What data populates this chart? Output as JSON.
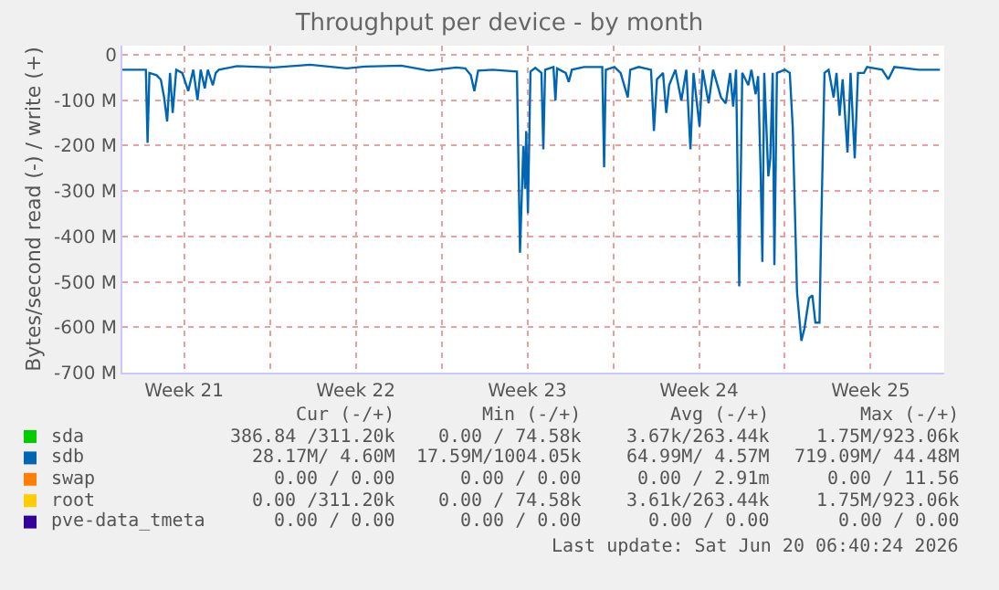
{
  "chart_data": {
    "type": "line",
    "title": "Throughput per device - by month",
    "ylabel": "Bytes/second read (-) / write (+)",
    "xlim": [
      "2026-05-18T23:30",
      "2026-06-21T12:00"
    ],
    "xticks": [
      {
        "value": "2026-05-21T12:00",
        "label": "Week 21"
      },
      {
        "value": "2026-05-25",
        "label": null
      },
      {
        "value": "2026-05-28T12:00",
        "label": "Week 22"
      },
      {
        "value": "2026-06-01",
        "label": null
      },
      {
        "value": "2026-06-04T12:00",
        "label": "Week 23"
      },
      {
        "value": "2026-06-08",
        "label": null
      },
      {
        "value": "2026-06-11T12:00",
        "label": "Week 24"
      },
      {
        "value": "2026-06-15",
        "label": null
      },
      {
        "value": "2026-06-18T12:00",
        "label": "Week 25"
      }
    ],
    "ylim": [
      -700,
      20
    ],
    "yticks": [
      {
        "value": -700,
        "label": "-700 M"
      },
      {
        "value": -600,
        "label": "-600 M"
      },
      {
        "value": -500,
        "label": "-500 M"
      },
      {
        "value": -400,
        "label": "-400 M"
      },
      {
        "value": -300,
        "label": "-300 M"
      },
      {
        "value": -200,
        "label": "-200 M"
      },
      {
        "value": -100,
        "label": "-100 M"
      },
      0
    ],
    "grid": true,
    "legend": "bottom",
    "marker": "none",
    "line_style": "solid",
    "series": [
      {
        "name": "sda",
        "color": "#00cc00"
      },
      {
        "name": "sdb",
        "color": "#0066b3",
        "x": [
          "2026-05-18T23:30",
          "2026-05-19T22:30",
          "2026-05-20T00:10",
          "2026-05-20T02:00",
          "2026-05-20T09:00",
          "2026-05-20T13:10",
          "2026-05-20T16:20",
          "2026-05-20T19:20",
          "2026-05-20T22:10",
          "2026-05-21T00:45",
          "2026-05-21T04:15",
          "2026-05-21T10:10",
          "2026-05-21T16:00",
          "2026-05-21T20:55",
          "2026-05-22T01:05",
          "2026-05-22T04:10",
          "2026-05-22T08:10",
          "2026-05-22T11:10",
          "2026-05-22T16:05",
          "2026-05-22T18:55",
          "2026-05-22T21:55",
          "2026-05-23T15:55",
          "2026-05-25T03:30",
          "2026-05-26T15:20",
          "2026-05-28T03:05",
          "2026-05-28T20:55",
          "2026-05-30T08:40",
          "2026-05-31T11:35",
          "2026-06-01T14:15",
          "2026-06-01T23:10",
          "2026-06-02T04:35",
          "2026-06-02T08:05",
          "2026-06-02T11:45",
          "2026-06-03T02:05",
          "2026-06-04T01:45",
          "2026-06-04T04:45",
          "2026-06-04T08:00",
          "2026-06-04T09:40",
          "2026-06-04T10:50",
          "2026-06-04T12:30",
          "2026-06-04T15:00",
          "2026-06-04T19:45",
          "2026-06-05T01:45",
          "2026-06-05T03:35",
          "2026-06-05T05:20",
          "2026-06-05T13:30",
          "2026-06-05T15:25",
          "2026-06-05T17:05",
          "2026-06-06T01:30",
          "2026-06-06T04:30",
          "2026-06-06T07:30",
          "2026-06-06T19:25",
          "2026-06-07T13:15",
          "2026-06-07T15:05",
          "2026-06-07T16:45",
          "2026-06-08T01:10",
          "2026-06-08T07:15",
          "2026-06-08T14:15",
          "2026-06-08T16:40",
          "2026-06-09T01:00",
          "2026-06-09T13:00",
          "2026-06-09T15:50",
          "2026-06-09T18:50",
          "2026-06-10T00:45",
          "2026-06-10T03:55",
          "2026-06-10T06:45",
          "2026-06-10T12:50",
          "2026-06-10T18:40",
          "2026-06-10T23:35",
          "2026-06-11T03:35",
          "2026-06-11T06:35",
          "2026-06-11T12:30",
          "2026-06-11T15:30",
          "2026-06-11T21:25",
          "2026-06-12T01:45",
          "2026-06-12T09:30",
          "2026-06-12T14:10",
          "2026-06-12T18:25",
          "2026-06-12T21:25",
          "2026-06-13T00:15",
          "2026-06-13T03:20",
          "2026-06-13T06:20",
          "2026-06-13T12:15",
          "2026-06-13T15:15",
          "2026-06-13T19:25",
          "2026-06-13T21:50",
          "2026-06-14T00:20",
          "2026-06-14T02:00",
          "2026-06-14T03:50",
          "2026-06-14T07:50",
          "2026-06-14T09:45",
          "2026-06-14T12:05",
          "2026-06-14T13:45",
          "2026-06-14T16:15",
          "2026-06-15T00:00",
          "2026-06-15T04:50",
          "2026-06-15T07:45",
          "2026-06-15T11:55",
          "2026-06-15T16:10",
          "2026-06-15T19:10",
          "2026-06-15T23:40",
          "2026-06-16T02:55",
          "2026-06-16T05:55",
          "2026-06-16T09:55",
          "2026-06-16T11:45",
          "2026-06-16T14:50",
          "2026-06-16T18:50",
          "2026-06-16T23:45",
          "2026-06-17T02:35",
          "2026-06-17T05:35",
          "2026-06-17T08:35",
          "2026-06-17T13:20",
          "2026-06-17T16:20",
          "2026-06-17T20:25",
          "2026-06-17T23:35",
          "2026-06-18T05:25",
          "2026-06-18T08:30",
          "2026-06-18T23:15",
          "2026-06-19T05:20",
          "2026-06-19T11:10",
          "2026-06-20T11:00",
          "2026-06-21T07:50"
        ],
        "values": [
          -33,
          -33,
          -194,
          -40,
          -45,
          -55,
          -93,
          -147,
          -40,
          -128,
          -33,
          -40,
          -80,
          -33,
          -100,
          -33,
          -74,
          -33,
          -67,
          -40,
          -33,
          -25,
          -28,
          -22,
          -30,
          -26,
          -24,
          -35,
          -28,
          -30,
          -45,
          -80,
          -35,
          -33,
          -37,
          -436,
          -201,
          -295,
          -168,
          -349,
          -37,
          -29,
          -40,
          -208,
          -33,
          -27,
          -101,
          -30,
          -40,
          -60,
          -33,
          -27,
          -27,
          -248,
          -33,
          -27,
          -40,
          -94,
          -33,
          -27,
          -33,
          -168,
          -54,
          -40,
          -128,
          -67,
          -33,
          -101,
          -33,
          -208,
          -40,
          -158,
          -33,
          -107,
          -33,
          -94,
          -107,
          -40,
          -114,
          -33,
          -510,
          -40,
          -67,
          -33,
          -87,
          -47,
          -261,
          -456,
          -40,
          -268,
          -228,
          -40,
          -463,
          -40,
          -33,
          -40,
          -161,
          -523,
          -630,
          -603,
          -536,
          -530,
          -590,
          -590,
          -362,
          -40,
          -33,
          -94,
          -40,
          -134,
          -54,
          -215,
          -40,
          -228,
          -40,
          -40,
          -27,
          -33,
          -54,
          -27,
          -33,
          -33
        ]
      },
      {
        "name": "swap",
        "color": "#ff8000"
      },
      {
        "name": "root",
        "color": "#ffcc00"
      },
      {
        "name": "pve-data_tmeta",
        "color": "#330099"
      }
    ],
    "annotations": [
      "Cur (-/+)",
      "Min (-/+)",
      "Avg (-/+)",
      "Max (-/+)",
      "386.84 /311.20k",
      "0.00 / 74.58k",
      "3.67k/263.44k",
      "1.75M/923.06k",
      "28.17M/ 4.60M",
      "17.59M/1004.05k",
      "64.99M/ 4.57M",
      "719.09M/ 44.48M",
      "0.00 / 0.00",
      "0.00 / 0.00",
      "0.00 / 2.91m",
      "0.00 / 11.56",
      "0.00 /311.20k",
      "0.00 / 74.58k",
      "3.61k/263.44k",
      "1.75M/923.06k",
      "0.00 / 0.00",
      "0.00 / 0.00",
      "0.00 / 0.00",
      "0.00 / 0.00",
      "Last update: Sat Jun 20 06:40:24 2026"
    ]
  }
}
